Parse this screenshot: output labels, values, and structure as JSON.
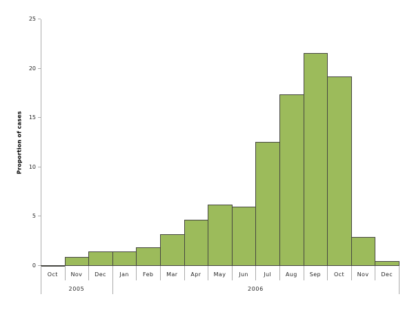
{
  "chart_data": {
    "type": "bar",
    "title": "",
    "xlabel": "",
    "ylabel": "Proportion of cases",
    "ylim": [
      0,
      25
    ],
    "yticks": [
      0,
      5,
      10,
      15,
      20,
      25
    ],
    "grid": false,
    "legend": false,
    "categories": [
      "Oct",
      "Nov",
      "Dec",
      "Jan",
      "Feb",
      "Mar",
      "Apr",
      "May",
      "Jun",
      "Jul",
      "Aug",
      "Sep",
      "Oct",
      "Nov",
      "Dec"
    ],
    "values": [
      0.1,
      0.9,
      1.5,
      1.5,
      1.9,
      3.2,
      4.7,
      6.2,
      6.0,
      12.6,
      17.4,
      21.6,
      19.2,
      2.9,
      0.5
    ],
    "year_groups": [
      {
        "label": "2005",
        "start": 0,
        "count": 3
      },
      {
        "label": "2006",
        "start": 3,
        "count": 12
      }
    ],
    "colors": {
      "bar_fill": "#9CBB5B",
      "bar_border": "#454540",
      "axis": "#ABABAB",
      "text": "#262626"
    }
  }
}
